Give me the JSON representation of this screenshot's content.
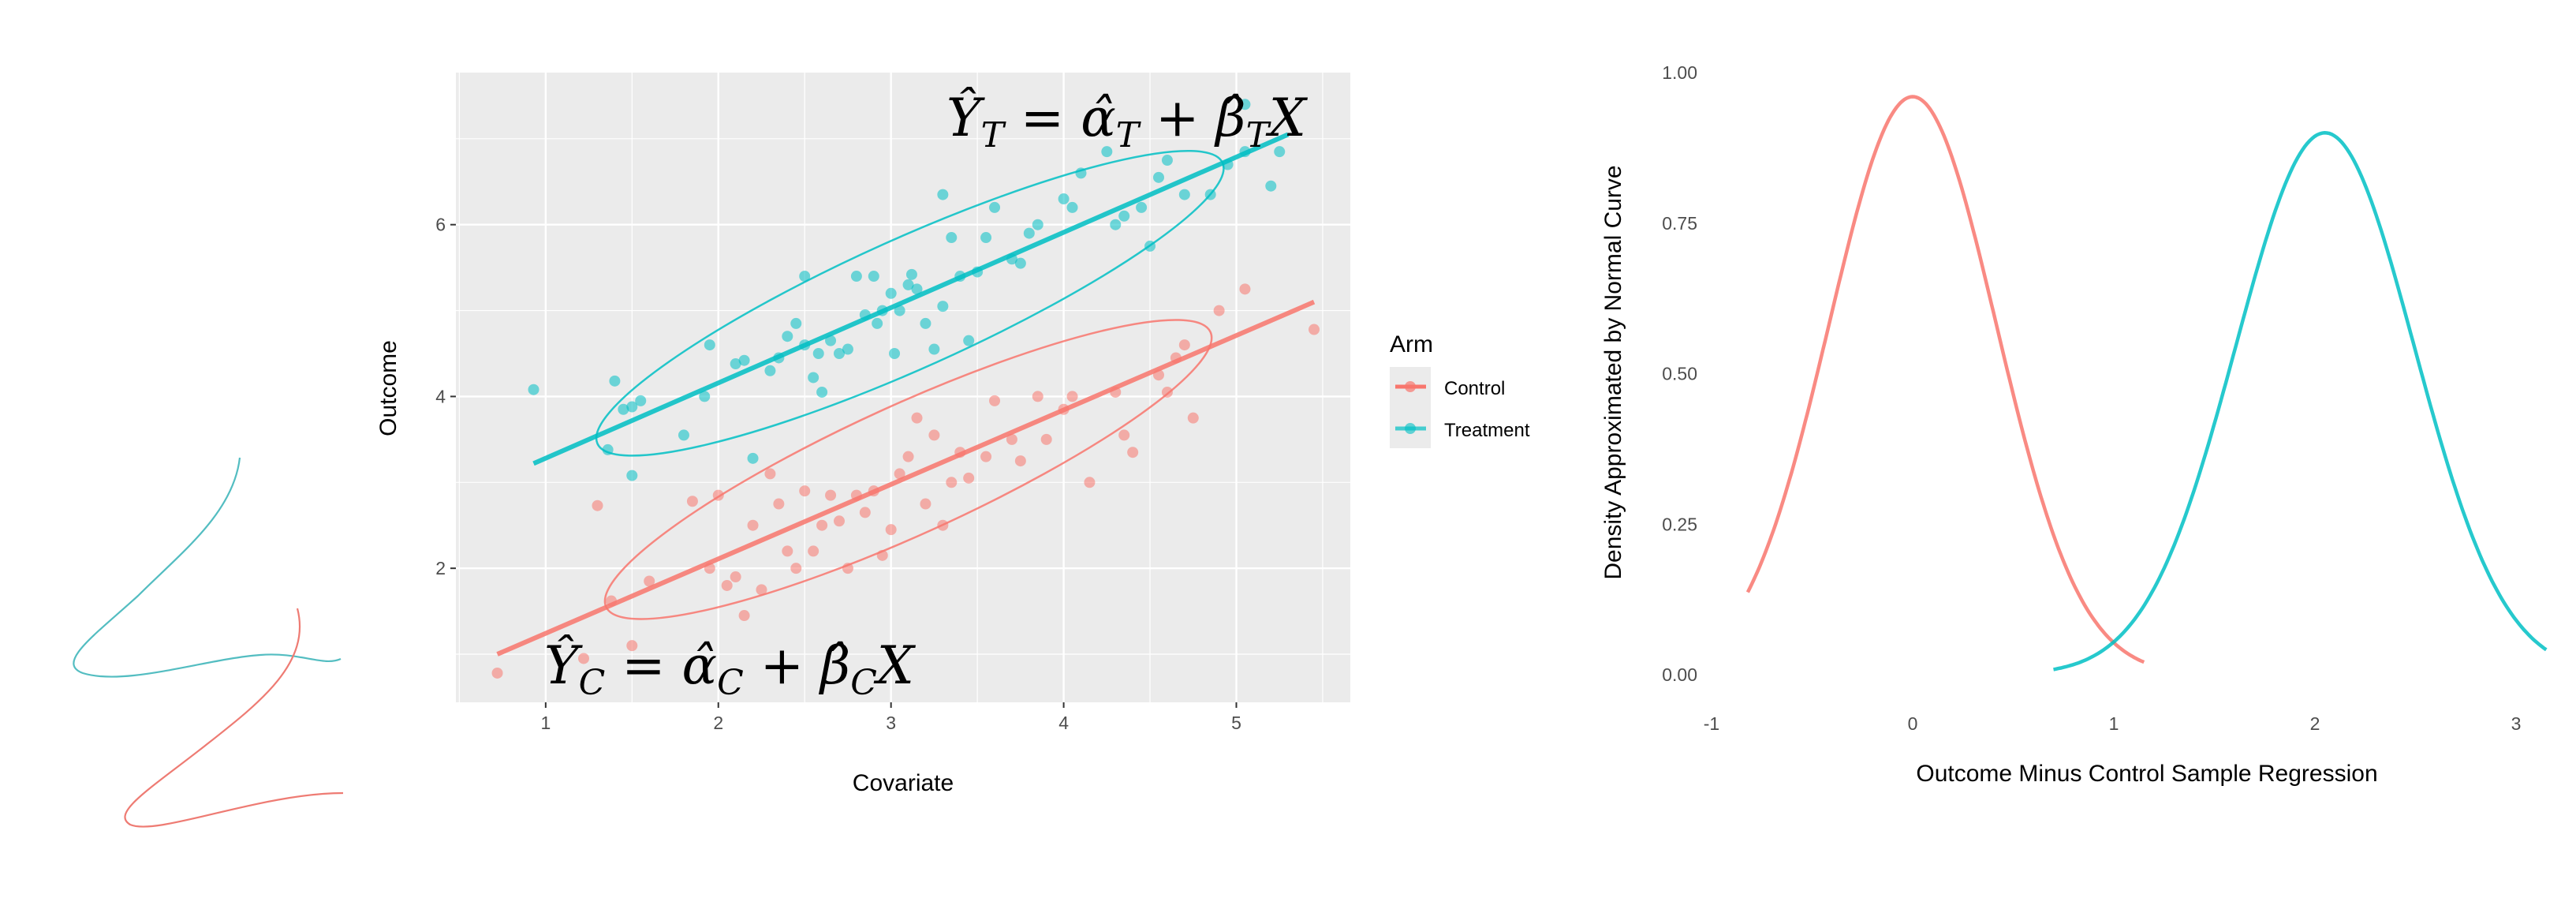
{
  "colors": {
    "control": "#F8766D",
    "treatment": "#00BFC4",
    "panel_bg": "#EBEBEB",
    "grid": "#FFFFFF"
  },
  "chart_data": [
    {
      "type": "scatter",
      "xlabel": "Covariate",
      "ylabel": "Outcome",
      "xlim": [
        0.48,
        5.66
      ],
      "ylim": [
        0.44,
        7.77
      ],
      "x_ticks": [
        "1",
        "2",
        "3",
        "4",
        "5"
      ],
      "y_ticks": [
        "2",
        "4",
        "6"
      ],
      "grid": true,
      "legend": {
        "title": "Arm",
        "placement": "right",
        "entries": [
          "Control",
          "Treatment"
        ]
      },
      "annotations": {
        "treatment_equation": {
          "lhs": "Ŷ",
          "lhs_sub": "T",
          "eq": " = ",
          "a": "α̂",
          "a_sub": "T",
          "plus": " + ",
          "b": "β̂",
          "b_sub": "T",
          "x": "X"
        },
        "control_equation": {
          "lhs": "Ŷ",
          "lhs_sub": "C",
          "eq": " = ",
          "a": "α̂",
          "a_sub": "C",
          "plus": " + ",
          "b": "β̂",
          "b_sub": "C",
          "x": "X"
        }
      },
      "series": [
        {
          "name": "Treatment",
          "color": "#00BFC4",
          "fit_line": [
            [
              0.93,
              3.22
            ],
            [
              5.3,
              7.05
            ]
          ],
          "ellipse": {
            "from": [
              1.3,
              3.45
            ],
            "to": [
              4.92,
              6.72
            ]
          },
          "points": [
            [
              0.93,
              4.08
            ],
            [
              1.36,
              3.38
            ],
            [
              1.4,
              4.18
            ],
            [
              1.45,
              3.85
            ],
            [
              1.5,
              3.88
            ],
            [
              1.55,
              3.95
            ],
            [
              1.5,
              3.08
            ],
            [
              1.8,
              3.55
            ],
            [
              1.92,
              4.0
            ],
            [
              1.95,
              4.6
            ],
            [
              2.1,
              4.38
            ],
            [
              2.15,
              4.42
            ],
            [
              2.2,
              3.28
            ],
            [
              2.3,
              4.3
            ],
            [
              2.35,
              4.45
            ],
            [
              2.4,
              4.7
            ],
            [
              2.45,
              4.85
            ],
            [
              2.5,
              4.6
            ],
            [
              2.5,
              5.4
            ],
            [
              2.55,
              4.22
            ],
            [
              2.58,
              4.5
            ],
            [
              2.6,
              4.05
            ],
            [
              2.65,
              4.65
            ],
            [
              2.7,
              4.5
            ],
            [
              2.75,
              4.55
            ],
            [
              2.8,
              5.4
            ],
            [
              2.85,
              4.95
            ],
            [
              2.9,
              5.4
            ],
            [
              2.92,
              4.85
            ],
            [
              2.95,
              5.0
            ],
            [
              3.0,
              5.2
            ],
            [
              3.02,
              4.5
            ],
            [
              3.05,
              5.0
            ],
            [
              3.1,
              5.3
            ],
            [
              3.12,
              5.42
            ],
            [
              3.15,
              5.25
            ],
            [
              3.2,
              4.85
            ],
            [
              3.25,
              4.55
            ],
            [
              3.3,
              5.05
            ],
            [
              3.3,
              6.35
            ],
            [
              3.35,
              5.85
            ],
            [
              3.4,
              5.4
            ],
            [
              3.45,
              4.65
            ],
            [
              3.5,
              5.45
            ],
            [
              3.55,
              5.85
            ],
            [
              3.6,
              6.2
            ],
            [
              3.7,
              5.6
            ],
            [
              3.75,
              5.55
            ],
            [
              3.8,
              5.9
            ],
            [
              3.85,
              6.0
            ],
            [
              4.0,
              6.3
            ],
            [
              4.05,
              6.2
            ],
            [
              4.1,
              6.6
            ],
            [
              4.25,
              6.85
            ],
            [
              4.3,
              6.0
            ],
            [
              4.35,
              6.1
            ],
            [
              4.45,
              6.2
            ],
            [
              4.5,
              5.75
            ],
            [
              4.55,
              6.55
            ],
            [
              4.6,
              6.75
            ],
            [
              4.7,
              6.35
            ],
            [
              4.85,
              6.35
            ],
            [
              4.95,
              6.7
            ],
            [
              5.05,
              6.85
            ],
            [
              5.05,
              7.4
            ],
            [
              5.2,
              6.45
            ],
            [
              5.25,
              6.85
            ]
          ]
        },
        {
          "name": "Control",
          "color": "#F8766D",
          "fit_line": [
            [
              0.72,
              1.0
            ],
            [
              5.45,
              5.1
            ]
          ],
          "ellipse": {
            "from": [
              1.35,
              1.55
            ],
            "to": [
              4.85,
              4.75
            ]
          },
          "points": [
            [
              0.72,
              0.78
            ],
            [
              1.22,
              0.95
            ],
            [
              1.3,
              2.73
            ],
            [
              1.38,
              1.62
            ],
            [
              1.5,
              1.1
            ],
            [
              1.6,
              1.85
            ],
            [
              1.85,
              2.78
            ],
            [
              1.95,
              2.0
            ],
            [
              2.0,
              2.85
            ],
            [
              2.05,
              1.8
            ],
            [
              2.1,
              1.9
            ],
            [
              2.15,
              1.45
            ],
            [
              2.2,
              2.5
            ],
            [
              2.25,
              1.75
            ],
            [
              2.3,
              3.1
            ],
            [
              2.35,
              2.75
            ],
            [
              2.4,
              2.2
            ],
            [
              2.45,
              2.0
            ],
            [
              2.5,
              2.9
            ],
            [
              2.55,
              2.2
            ],
            [
              2.6,
              2.5
            ],
            [
              2.65,
              2.85
            ],
            [
              2.7,
              2.55
            ],
            [
              2.75,
              2.0
            ],
            [
              2.8,
              2.85
            ],
            [
              2.85,
              2.65
            ],
            [
              2.9,
              2.9
            ],
            [
              2.95,
              2.15
            ],
            [
              3.0,
              2.45
            ],
            [
              3.05,
              3.1
            ],
            [
              3.1,
              3.3
            ],
            [
              3.15,
              3.75
            ],
            [
              3.2,
              2.75
            ],
            [
              3.25,
              3.55
            ],
            [
              3.3,
              2.5
            ],
            [
              3.35,
              3.0
            ],
            [
              3.4,
              3.35
            ],
            [
              3.45,
              3.05
            ],
            [
              3.55,
              3.3
            ],
            [
              3.6,
              3.95
            ],
            [
              3.7,
              3.5
            ],
            [
              3.75,
              3.25
            ],
            [
              3.85,
              4.0
            ],
            [
              3.9,
              3.5
            ],
            [
              4.0,
              3.85
            ],
            [
              4.05,
              4.0
            ],
            [
              4.15,
              3.0
            ],
            [
              4.3,
              4.05
            ],
            [
              4.35,
              3.55
            ],
            [
              4.4,
              3.35
            ],
            [
              4.55,
              4.25
            ],
            [
              4.6,
              4.05
            ],
            [
              4.65,
              4.45
            ],
            [
              4.7,
              4.6
            ],
            [
              4.75,
              3.75
            ],
            [
              4.9,
              5.0
            ],
            [
              5.05,
              5.25
            ],
            [
              5.45,
              4.78
            ]
          ]
        }
      ]
    },
    {
      "type": "line",
      "xlabel": "Outcome Minus Control Sample Regression",
      "ylabel": "Density Approximated by Normal Curve",
      "xlim": [
        -1,
        3.2
      ],
      "ylim": [
        0,
        1.0
      ],
      "x_ticks": [
        "-1",
        "0",
        "1",
        "2",
        "3"
      ],
      "y_ticks": [
        "0.00",
        "0.25",
        "0.50",
        "0.75",
        "1.00"
      ],
      "grid": false,
      "series": [
        {
          "color": "#F8766D",
          "distribution": "normal",
          "mean": 0.0,
          "peak_density": 0.96,
          "x_range": [
            -0.82,
            1.15
          ]
        },
        {
          "color": "#00BFC4",
          "distribution": "normal",
          "mean": 2.05,
          "peak_density": 0.9,
          "x_range": [
            0.7,
            3.15
          ]
        }
      ]
    }
  ]
}
